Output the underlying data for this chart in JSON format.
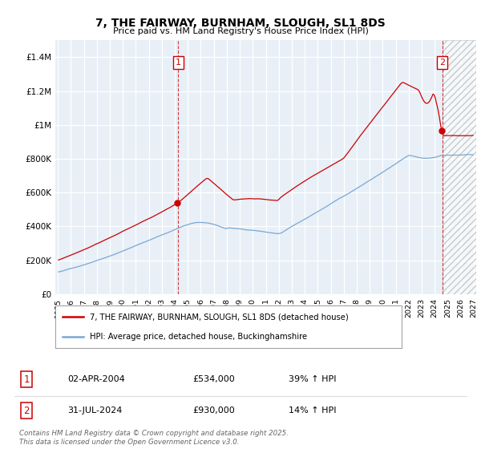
{
  "title": "7, THE FAIRWAY, BURNHAM, SLOUGH, SL1 8DS",
  "subtitle": "Price paid vs. HM Land Registry's House Price Index (HPI)",
  "ylim": [
    0,
    1500000
  ],
  "yticks": [
    0,
    200000,
    400000,
    600000,
    800000,
    1000000,
    1200000,
    1400000
  ],
  "ytick_labels": [
    "£0",
    "£200K",
    "£400K",
    "£600K",
    "£800K",
    "£1M",
    "£1.2M",
    "£1.4M"
  ],
  "xlim_start": 1994.8,
  "xlim_end": 2027.2,
  "xticks": [
    1995,
    1996,
    1997,
    1998,
    1999,
    2000,
    2001,
    2002,
    2003,
    2004,
    2005,
    2006,
    2007,
    2008,
    2009,
    2010,
    2011,
    2012,
    2013,
    2014,
    2015,
    2016,
    2017,
    2018,
    2019,
    2020,
    2021,
    2022,
    2023,
    2024,
    2025,
    2026,
    2027
  ],
  "red_line_color": "#cc0000",
  "blue_line_color": "#7aa8d4",
  "vline1_x": 2004.25,
  "vline2_x": 2024.58,
  "hatch_start": 2024.58,
  "marker1_price": 534000,
  "marker2_price": 930000,
  "sale1_label": "1",
  "sale1_date": "02-APR-2004",
  "sale1_price": "£534,000",
  "sale1_hpi": "39% ↑ HPI",
  "sale2_label": "2",
  "sale2_date": "31-JUL-2024",
  "sale2_price": "£930,000",
  "sale2_hpi": "14% ↑ HPI",
  "legend1_label": "7, THE FAIRWAY, BURNHAM, SLOUGH, SL1 8DS (detached house)",
  "legend2_label": "HPI: Average price, detached house, Buckinghamshire",
  "footer": "Contains HM Land Registry data © Crown copyright and database right 2025.\nThis data is licensed under the Open Government Licence v3.0.",
  "bg_color": "#e8eff7"
}
